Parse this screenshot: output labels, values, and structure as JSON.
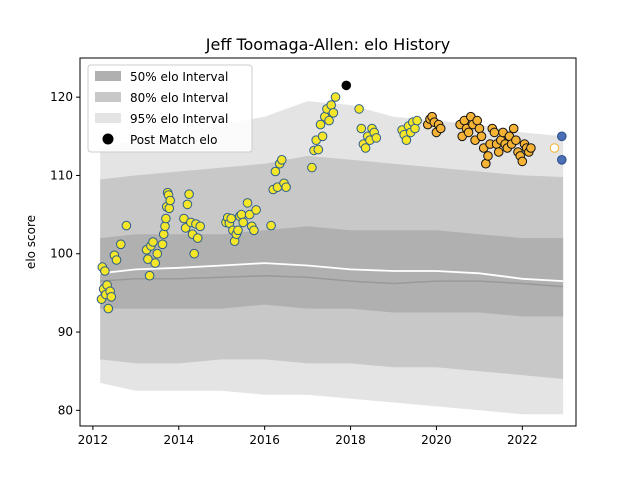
{
  "chart_data": {
    "type": "scatter",
    "title": "Jeff Toomaga-Allen: elo History",
    "xlabel": "",
    "ylabel": "elo score",
    "xlim": [
      2011.7,
      2023.25
    ],
    "ylim": [
      78,
      125
    ],
    "x_ticks": [
      2012,
      2014,
      2016,
      2018,
      2020,
      2022
    ],
    "x_tick_labels": [
      "2012",
      "2014",
      "2016",
      "2018",
      "2020",
      "2022"
    ],
    "y_ticks": [
      80,
      90,
      100,
      110,
      120
    ],
    "y_tick_labels": [
      "80",
      "90",
      "100",
      "110",
      "120"
    ],
    "legend_position": "top-left",
    "legend": [
      {
        "label": "50% elo Interval",
        "color": "#b0b0b0"
      },
      {
        "label": "80% elo Interval",
        "color": "#c8c8c8"
      },
      {
        "label": "95% elo Interval",
        "color": "#e4e4e4"
      },
      {
        "label": "Post Match elo",
        "color": "#000000"
      }
    ],
    "colors": {
      "team_a_fill": "#f5e62a",
      "team_a_edge": "#2e5f8a",
      "team_b_fill": "#f5b335",
      "team_b_edge": "#111111",
      "team_c_fill": "#4a6fb5",
      "team_c_edge": "#2e4f8a",
      "outlier_fill": "#000000",
      "future_fill": "#ffffff",
      "future_edge": "#f5b335",
      "median_line": "#ffffff",
      "band_50": "#b0b0b0",
      "band_80": "#c8c8c8",
      "band_95": "#e4e4e4",
      "mean_line": "#999999"
    },
    "bands": {
      "x": [
        2012.17,
        2013.0,
        2014.0,
        2015.0,
        2016.0,
        2017.0,
        2018.0,
        2019.0,
        2020.0,
        2021.0,
        2022.0,
        2022.95
      ],
      "p95_high": [
        113.5,
        114.5,
        115.5,
        116.5,
        117.5,
        119.5,
        119.0,
        117.5,
        117.0,
        116.5,
        115.5,
        115.0
      ],
      "p80_high": [
        109.5,
        110.0,
        110.5,
        111.0,
        111.5,
        112.5,
        112.0,
        111.5,
        111.0,
        110.5,
        110.0,
        109.8
      ],
      "p50_high": [
        102.0,
        102.5,
        102.5,
        102.5,
        103.0,
        103.5,
        103.0,
        103.0,
        103.0,
        102.5,
        102.0,
        102.0
      ],
      "p50_low": [
        93.0,
        93.0,
        93.0,
        93.0,
        93.5,
        93.0,
        93.0,
        92.5,
        92.5,
        92.5,
        92.0,
        92.0
      ],
      "p80_low": [
        86.5,
        86.0,
        86.0,
        86.5,
        86.5,
        86.0,
        86.0,
        85.5,
        85.5,
        85.0,
        84.5,
        84.0
      ],
      "p95_low": [
        83.5,
        82.5,
        82.5,
        82.5,
        82.0,
        82.0,
        81.5,
        81.0,
        80.5,
        80.0,
        79.5,
        79.5
      ]
    },
    "median_line": {
      "x": [
        2012.17,
        2013.0,
        2014.0,
        2015.0,
        2016.0,
        2017.0,
        2018.0,
        2019.0,
        2020.0,
        2021.0,
        2022.0,
        2022.95
      ],
      "y": [
        97.5,
        98.0,
        98.2,
        98.5,
        98.8,
        98.5,
        98.0,
        97.8,
        97.8,
        97.5,
        96.8,
        96.5
      ]
    },
    "mean_line": {
      "x": [
        2012.17,
        2013.0,
        2014.0,
        2015.0,
        2016.0,
        2017.0,
        2018.0,
        2019.0,
        2020.0,
        2021.0,
        2022.0,
        2022.95
      ],
      "y": [
        96.5,
        96.8,
        96.8,
        97.0,
        97.2,
        97.0,
        96.5,
        96.2,
        96.5,
        96.5,
        96.2,
        95.8
      ]
    },
    "series": [
      {
        "style": "team_a",
        "x": [
          2012.2,
          2012.22,
          2012.25,
          2012.28,
          2012.3,
          2012.33,
          2012.36,
          2012.4,
          2012.43,
          2012.5,
          2012.55,
          2012.65,
          2012.78,
          2013.25,
          2013.28,
          2013.32,
          2013.35,
          2013.4,
          2013.45,
          2013.5,
          2013.62,
          2013.65,
          2013.68,
          2013.7,
          2013.72,
          2013.74,
          2013.76,
          2013.78,
          2013.8,
          2014.12,
          2014.16,
          2014.2,
          2014.24,
          2014.28,
          2014.32,
          2014.36,
          2014.4,
          2014.44,
          2014.5,
          2015.1,
          2015.14,
          2015.18,
          2015.22,
          2015.26,
          2015.3,
          2015.34,
          2015.38,
          2015.42,
          2015.46,
          2015.5,
          2015.6,
          2015.65,
          2015.7,
          2015.75,
          2015.8,
          2016.15,
          2016.2,
          2016.25,
          2016.3,
          2016.35,
          2016.4,
          2016.45,
          2016.5,
          2017.1,
          2017.15,
          2017.2,
          2017.25,
          2017.3,
          2017.35,
          2017.4,
          2017.45,
          2017.5,
          2017.55,
          2017.6,
          2017.65,
          2018.2,
          2018.25,
          2018.3,
          2018.35,
          2018.4,
          2018.45,
          2018.5,
          2018.55,
          2018.6,
          2019.2,
          2019.25,
          2019.3,
          2019.35,
          2019.4,
          2019.45,
          2019.5,
          2019.55
        ],
        "y": [
          94.2,
          98.3,
          95.5,
          97.8,
          94.8,
          96.0,
          93.0,
          95.2,
          94.5,
          99.8,
          99.2,
          101.2,
          103.6,
          100.5,
          99.3,
          97.2,
          101.0,
          101.5,
          98.8,
          100.0,
          101.2,
          102.5,
          103.5,
          104.5,
          106.0,
          107.8,
          107.5,
          105.8,
          106.8,
          104.5,
          103.3,
          106.3,
          107.6,
          104.0,
          102.5,
          100.0,
          103.8,
          102.0,
          103.5,
          104.0,
          104.6,
          103.9,
          104.5,
          103.0,
          101.6,
          102.5,
          103.0,
          104.8,
          105.0,
          104.0,
          106.5,
          105.0,
          103.5,
          103.0,
          105.6,
          103.6,
          108.2,
          110.5,
          108.5,
          111.5,
          112.0,
          109.0,
          108.5,
          111.0,
          113.2,
          114.5,
          113.3,
          116.5,
          115.0,
          117.5,
          118.5,
          117.0,
          119.0,
          118.0,
          120.0,
          118.5,
          116.0,
          114.0,
          113.5,
          115.0,
          114.5,
          116.0,
          115.5,
          114.8,
          115.8,
          115.2,
          114.5,
          116.3,
          115.5,
          116.8,
          116.0,
          117.0
        ]
      },
      {
        "style": "team_b",
        "x": [
          2019.8,
          2019.85,
          2019.9,
          2019.95,
          2020.0,
          2020.05,
          2020.1,
          2020.55,
          2020.6,
          2020.65,
          2020.7,
          2020.75,
          2020.8,
          2020.85,
          2020.9,
          2020.95,
          2021.0,
          2021.05,
          2021.1,
          2021.15,
          2021.2,
          2021.25,
          2021.3,
          2021.35,
          2021.4,
          2021.45,
          2021.5,
          2021.55,
          2021.6,
          2021.65,
          2021.7,
          2021.75,
          2021.8,
          2021.85,
          2021.9,
          2021.95,
          2022.0,
          2022.05,
          2022.1,
          2022.15,
          2022.2
        ],
        "y": [
          116.5,
          117.2,
          117.5,
          116.8,
          115.5,
          116.5,
          116.0,
          116.5,
          115.0,
          117.0,
          116.0,
          115.5,
          117.5,
          116.5,
          114.5,
          117.0,
          116.0,
          115.0,
          113.5,
          111.5,
          112.5,
          114.0,
          116.0,
          115.5,
          114.0,
          113.0,
          114.5,
          115.5,
          114.0,
          113.5,
          115.0,
          114.0,
          116.0,
          114.5,
          113.0,
          112.5,
          111.8,
          114.0,
          113.5,
          113.0,
          113.5
        ]
      },
      {
        "style": "outlier",
        "x": [
          2017.9
        ],
        "y": [
          121.5
        ]
      },
      {
        "style": "future",
        "x": [
          2022.75
        ],
        "y": [
          113.5
        ]
      },
      {
        "style": "team_c",
        "x": [
          2022.92,
          2022.92
        ],
        "y": [
          115.0,
          112.0
        ]
      }
    ]
  }
}
